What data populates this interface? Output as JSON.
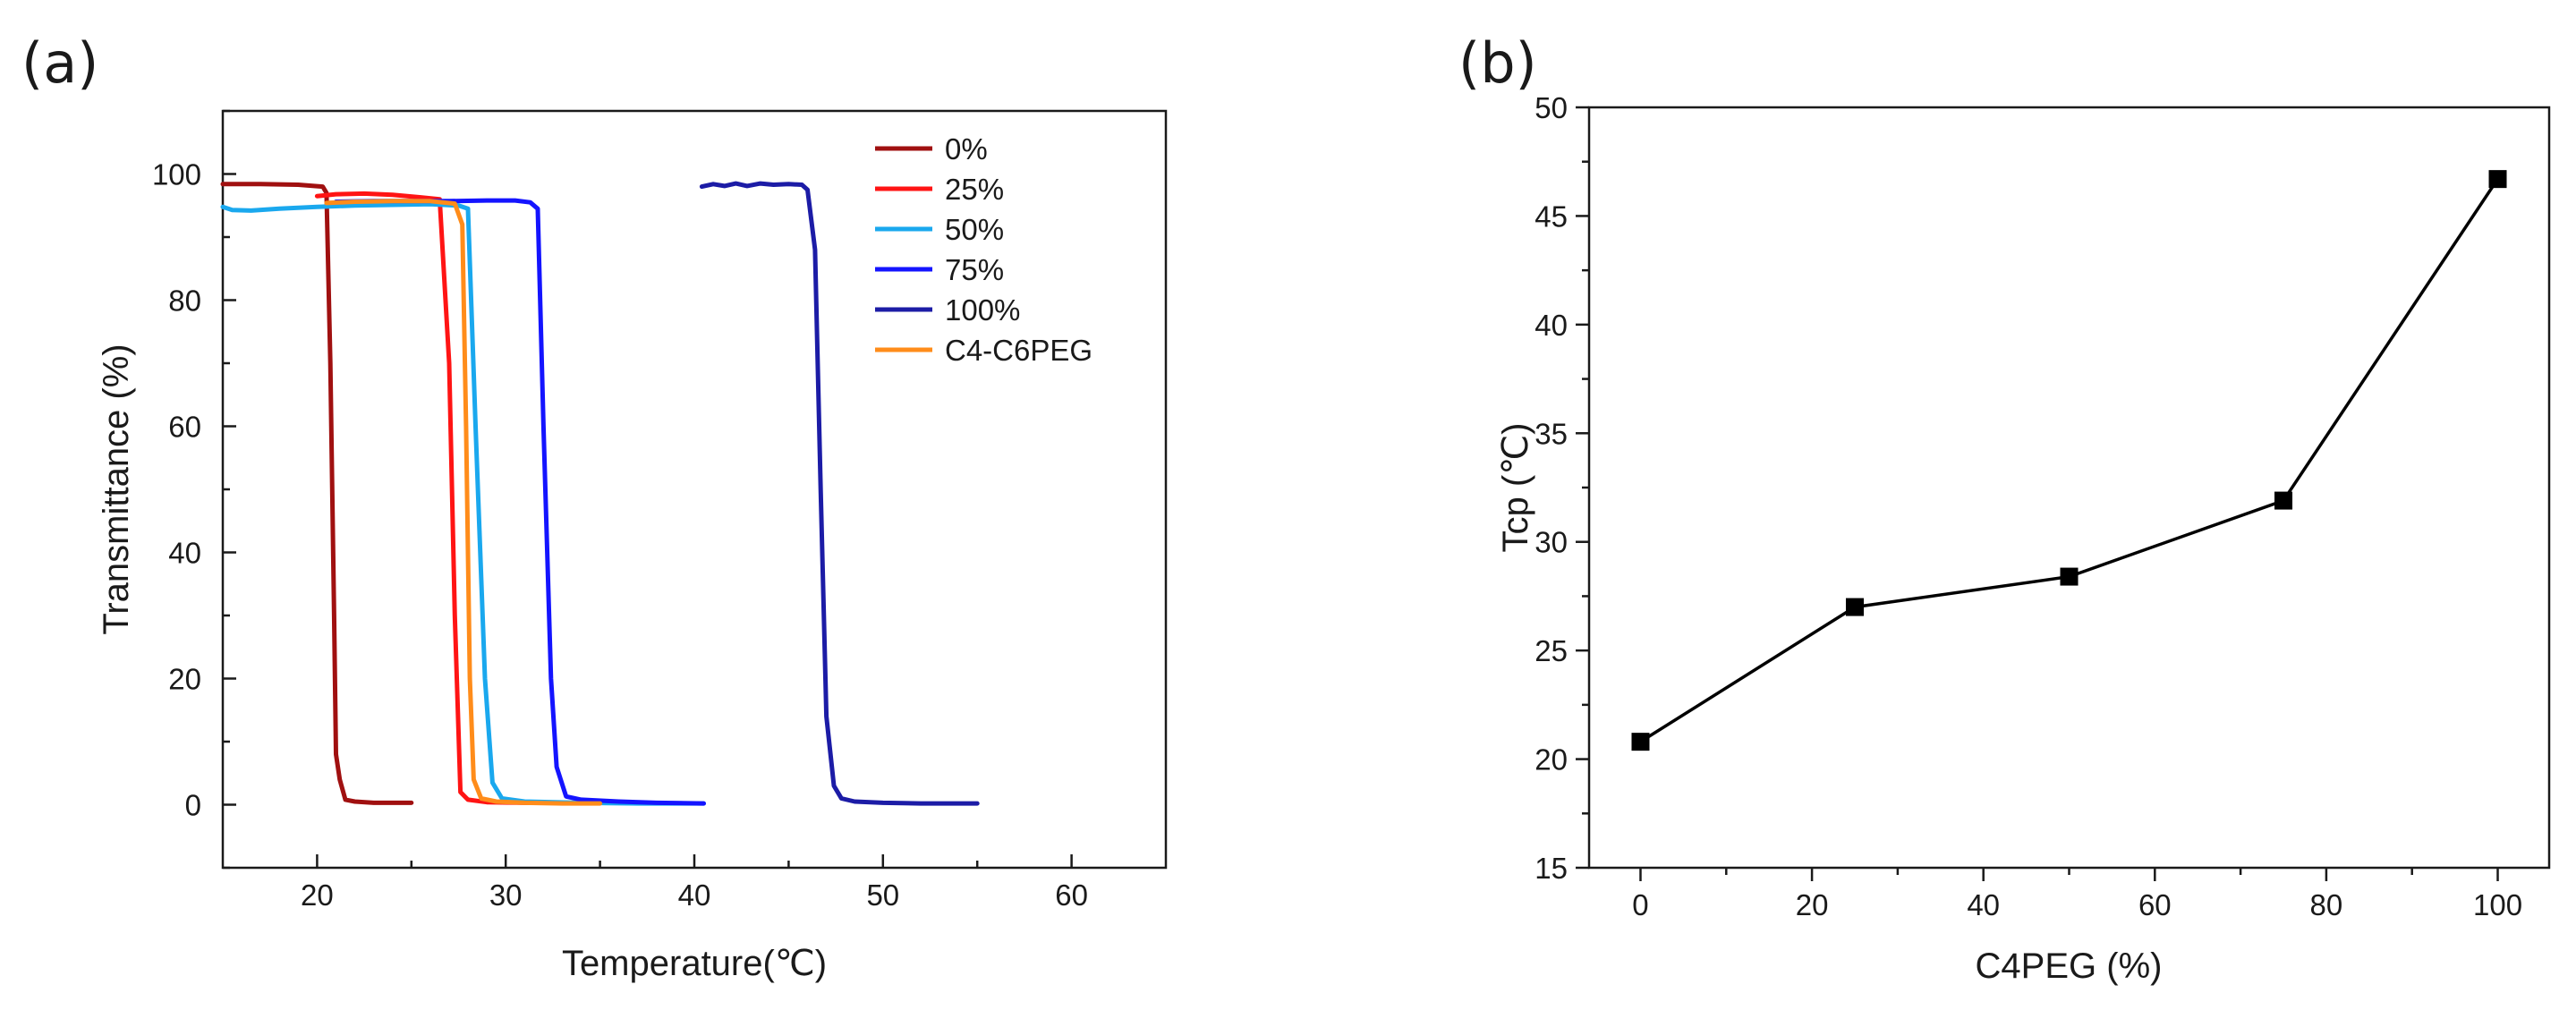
{
  "chart_data": [
    {
      "panel_label": "(a)",
      "type": "line",
      "xlabel": "Temperature(℃)",
      "ylabel": "Transmittance (%)",
      "xlim": [
        15,
        65
      ],
      "ylim": [
        -10,
        110
      ],
      "xticks": [
        20,
        30,
        40,
        50,
        60
      ],
      "yticks": [
        0,
        20,
        40,
        60,
        80,
        100
      ],
      "legend_position": "top-right",
      "series": [
        {
          "name": "0%",
          "color": "#a01010",
          "points": [
            [
              15,
              98.4
            ],
            [
              17,
              98.4
            ],
            [
              19,
              98.3
            ],
            [
              20.3,
              98.0
            ],
            [
              20.5,
              97.0
            ],
            [
              20.7,
              70
            ],
            [
              20.9,
              30
            ],
            [
              21.0,
              8
            ],
            [
              21.2,
              4
            ],
            [
              21.5,
              0.8
            ],
            [
              22,
              0.5
            ],
            [
              23,
              0.3
            ],
            [
              24,
              0.3
            ],
            [
              25,
              0.3
            ]
          ]
        },
        {
          "name": "25%",
          "color": "#ff1414",
          "points": [
            [
              20,
              96.5
            ],
            [
              21,
              96.8
            ],
            [
              22.5,
              96.9
            ],
            [
              24,
              96.7
            ],
            [
              25.5,
              96.3
            ],
            [
              26.5,
              96.0
            ],
            [
              27.0,
              70
            ],
            [
              27.3,
              30
            ],
            [
              27.6,
              2.0
            ],
            [
              28.0,
              0.8
            ],
            [
              29,
              0.4
            ],
            [
              31,
              0.3
            ],
            [
              33,
              0.3
            ],
            [
              35,
              0.3
            ]
          ]
        },
        {
          "name": "50%",
          "color": "#1aa8ee",
          "points": [
            [
              15,
              94.8
            ],
            [
              15.5,
              94.3
            ],
            [
              16.5,
              94.2
            ],
            [
              18,
              94.5
            ],
            [
              20,
              94.8
            ],
            [
              22,
              95.0
            ],
            [
              24,
              95.1
            ],
            [
              26,
              95.2
            ],
            [
              27.5,
              95.0
            ],
            [
              28.0,
              94.5
            ],
            [
              28.4,
              60
            ],
            [
              28.9,
              20
            ],
            [
              29.3,
              3.5
            ],
            [
              29.8,
              1.0
            ],
            [
              31,
              0.5
            ],
            [
              34,
              0.3
            ],
            [
              37,
              0.2
            ],
            [
              40.5,
              0.2
            ]
          ]
        },
        {
          "name": "75%",
          "color": "#1414ff",
          "points": [
            [
              21,
              95.6
            ],
            [
              23,
              95.7
            ],
            [
              25,
              95.7
            ],
            [
              27,
              95.7
            ],
            [
              29,
              95.8
            ],
            [
              30.5,
              95.8
            ],
            [
              31.3,
              95.5
            ],
            [
              31.7,
              94.5
            ],
            [
              32.0,
              60
            ],
            [
              32.4,
              20
            ],
            [
              32.7,
              6
            ],
            [
              33.2,
              1.3
            ],
            [
              34,
              0.8
            ],
            [
              36,
              0.5
            ],
            [
              38,
              0.3
            ],
            [
              40.5,
              0.2
            ]
          ]
        },
        {
          "name": "100%",
          "color": "#1c1ca6",
          "points": [
            [
              40.4,
              98.0
            ],
            [
              41,
              98.4
            ],
            [
              41.6,
              98.1
            ],
            [
              42.2,
              98.5
            ],
            [
              42.8,
              98.1
            ],
            [
              43.5,
              98.5
            ],
            [
              44.2,
              98.3
            ],
            [
              45,
              98.4
            ],
            [
              45.7,
              98.3
            ],
            [
              46.0,
              97.5
            ],
            [
              46.4,
              88
            ],
            [
              46.7,
              50
            ],
            [
              47.0,
              14
            ],
            [
              47.4,
              3
            ],
            [
              47.8,
              1.0
            ],
            [
              48.5,
              0.5
            ],
            [
              50,
              0.3
            ],
            [
              52,
              0.2
            ],
            [
              55,
              0.2
            ]
          ]
        },
        {
          "name": "C4-C6PEG",
          "color": "#ff8c1a",
          "points": [
            [
              20.5,
              95.4
            ],
            [
              22,
              95.6
            ],
            [
              24,
              95.7
            ],
            [
              26,
              95.7
            ],
            [
              27.3,
              95.3
            ],
            [
              27.7,
              92
            ],
            [
              27.9,
              60
            ],
            [
              28.1,
              20
            ],
            [
              28.3,
              4
            ],
            [
              28.7,
              1.0
            ],
            [
              29.5,
              0.5
            ],
            [
              31,
              0.3
            ],
            [
              33,
              0.2
            ],
            [
              35,
              0.2
            ]
          ]
        }
      ]
    },
    {
      "panel_label": "(b)",
      "type": "line",
      "xlabel": "C4PEG (%)",
      "ylabel": "Tcp (℃)",
      "xlim": [
        -6,
        106
      ],
      "ylim": [
        15,
        50
      ],
      "xticks": [
        0,
        20,
        40,
        60,
        80,
        100
      ],
      "yticks": [
        15,
        20,
        25,
        30,
        35,
        40,
        45,
        50
      ],
      "marker": "square",
      "series": [
        {
          "name": "Tcp",
          "color": "#000000",
          "x": [
            0,
            25,
            50,
            75,
            100
          ],
          "y": [
            20.8,
            27.0,
            28.4,
            31.9,
            46.7
          ]
        }
      ]
    }
  ]
}
